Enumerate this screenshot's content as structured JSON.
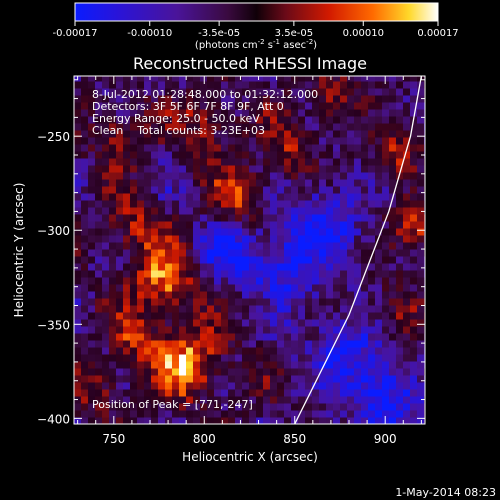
{
  "chart_data": {
    "type": "heatmap",
    "title": "Reconstructed RHESSI Image",
    "xlabel": "Heliocentric X (arcsec)",
    "ylabel": "Heliocentric Y (arcsec)",
    "xlim": [
      728,
      922
    ],
    "ylim": [
      -403,
      -218
    ],
    "x_ticks": [
      750,
      800,
      850,
      900
    ],
    "y_ticks": [
      -250,
      -300,
      -350,
      -400
    ],
    "colorbar": {
      "range": [
        -0.00017,
        0.00017
      ],
      "tick_values": [
        -0.00017,
        -0.0001,
        -3.5e-05,
        3.5e-05,
        0.0001,
        0.00017
      ],
      "tick_labels": [
        "-0.00017",
        "-0.00010",
        "-3.5e-05",
        "3.5e-05",
        "0.00010",
        "0.00017"
      ],
      "unit_parts": [
        "(photons cm",
        "-2",
        " s",
        "-1",
        " asec",
        "-2",
        ")"
      ]
    },
    "annotations": {
      "time_range": "8-Jul-2012 01:28:48.000 to 01:32:12.000",
      "detectors": "Detectors: 3F 5F 6F 7F 8F 9F, Att 0",
      "energy_range": "Energy Range: 25.0 - 50.0 keV",
      "method_counts": "Clean    Total counts: 3.23E+03",
      "peak_position": "Position of Peak = [771,-247]"
    },
    "limb_curve": [
      [
        850,
        -403
      ],
      [
        880,
        -345
      ],
      [
        902,
        -290
      ],
      [
        914,
        -250
      ],
      [
        920,
        -218
      ]
    ],
    "footer_date": "1-May-2014 08:23",
    "grid": false,
    "colormap": "rhessi blue-purple-red-yellow-white"
  }
}
